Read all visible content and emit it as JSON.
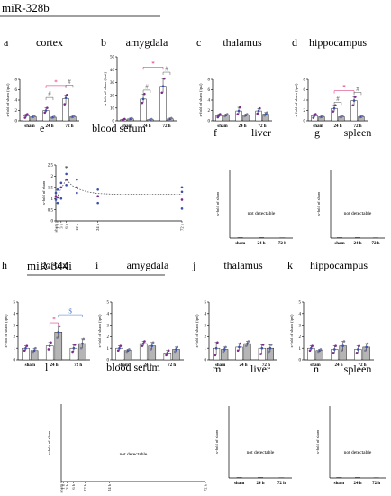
{
  "sections": [
    {
      "title": "miR-328b"
    },
    {
      "title": "miR-344i"
    }
  ],
  "colors": {
    "bar_fill": "#ffffff",
    "bar_fill_gray": "#b5b5b5",
    "point_purple": "#7d2a8c",
    "point_blue": "#3a4fb0",
    "point_gray": "#7a7a9a",
    "sig_red": "#d6186b",
    "sig_blue": "#4a74c9",
    "sig_gray": "#555555",
    "nd_green": "#2fb24a",
    "nd_red": "#d62828",
    "fit_line": "#444444",
    "serum_line": "#8b8bd6"
  },
  "chart_data": [
    {
      "type": "bar",
      "letter": "a",
      "title": "cortex",
      "section": 0,
      "ylabel": "x-fold of sham (ipsi)",
      "ylim": [
        0,
        8
      ],
      "yticks": [
        0,
        2,
        4,
        6,
        8
      ],
      "categories": [
        "sham",
        "24 h",
        "72 h"
      ],
      "series": [
        {
          "values": [
            1.0,
            2.0,
            4.3
          ],
          "points": [
            [
              0.6,
              1.0,
              1.3
            ],
            [
              1.6,
              2.0,
              2.5
            ],
            [
              3.2,
              4.4,
              5.0
            ]
          ]
        },
        {
          "values": [
            0.8,
            0.7,
            0.8
          ],
          "points": [
            [
              0.7,
              0.8,
              0.9
            ],
            [
              0.6,
              0.7,
              0.8
            ],
            [
              0.7,
              0.8,
              0.9
            ]
          ]
        }
      ],
      "annotations": [
        {
          "type": "bracket",
          "from": [
            1,
            0
          ],
          "to": [
            2,
            0
          ],
          "level": 6.8,
          "symbol": "*",
          "color": "sig_red"
        },
        {
          "type": "bracket",
          "from": [
            1,
            0
          ],
          "to": [
            1,
            1
          ],
          "level": 4.5,
          "symbol": "#",
          "color": "sig_gray"
        },
        {
          "type": "bracket",
          "from": [
            2,
            0
          ],
          "to": [
            2,
            1
          ],
          "level": 6.9,
          "symbol": "#",
          "color": "sig_gray"
        }
      ]
    },
    {
      "type": "bar",
      "letter": "b",
      "title": "amygdala",
      "section": 0,
      "ylabel": "x-fold of sham (ipsi)",
      "ylim": [
        0,
        50
      ],
      "yticks": [
        0,
        10,
        20,
        30,
        40,
        50
      ],
      "categories": [
        "sham",
        "24 h",
        "72 h"
      ],
      "series": [
        {
          "values": [
            1.0,
            17.0,
            27.0
          ],
          "points": [
            [
              0.5,
              1.0,
              1.5
            ],
            [
              14.0,
              17.0,
              21.0
            ],
            [
              22.0,
              27.0,
              33.0
            ]
          ]
        },
        {
          "values": [
            1.6,
            1.0,
            1.6
          ],
          "points": [
            [
              1.0,
              1.6,
              2.2
            ],
            [
              0.6,
              1.0,
              1.4
            ],
            [
              1.0,
              1.6,
              2.2
            ]
          ]
        }
      ],
      "annotations": [
        {
          "type": "bracket",
          "from": [
            1,
            0
          ],
          "to": [
            2,
            0
          ],
          "level": 42,
          "symbol": "*",
          "color": "sig_red"
        },
        {
          "type": "bracket",
          "from": [
            1,
            0
          ],
          "to": [
            1,
            1
          ],
          "level": 24,
          "symbol": "#",
          "color": "sig_gray"
        },
        {
          "type": "bracket",
          "from": [
            2,
            0
          ],
          "to": [
            2,
            1
          ],
          "level": 38,
          "symbol": "#",
          "color": "sig_gray"
        }
      ]
    },
    {
      "type": "bar",
      "letter": "c",
      "title": "thalamus",
      "section": 0,
      "ylabel": "x-fold of sham (ipsi)",
      "ylim": [
        0,
        8
      ],
      "yticks": [
        0,
        2,
        4,
        6,
        8
      ],
      "categories": [
        "sham",
        "24 h",
        "72 h"
      ],
      "series": [
        {
          "values": [
            1.0,
            1.9,
            1.9
          ],
          "points": [
            [
              0.7,
              1.0,
              1.3
            ],
            [
              1.3,
              1.9,
              2.6
            ],
            [
              1.4,
              1.9,
              2.4
            ]
          ]
        },
        {
          "values": [
            1.1,
            1.1,
            1.3
          ],
          "points": [
            [
              0.9,
              1.1,
              1.3
            ],
            [
              0.9,
              1.1,
              1.3
            ],
            [
              1.0,
              1.3,
              1.6
            ]
          ]
        }
      ],
      "annotations": []
    },
    {
      "type": "bar",
      "letter": "d",
      "title": "hippocampus",
      "section": 0,
      "ylabel": "x-fold of sham (ipsi)",
      "ylim": [
        0,
        8
      ],
      "yticks": [
        0,
        2,
        4,
        6,
        8
      ],
      "categories": [
        "sham",
        "24 h",
        "72 h"
      ],
      "series": [
        {
          "values": [
            1.0,
            2.4,
            3.9
          ],
          "points": [
            [
              0.6,
              1.0,
              1.3
            ],
            [
              1.8,
              2.4,
              3.0
            ],
            [
              3.0,
              3.9,
              4.6
            ]
          ]
        },
        {
          "values": [
            0.8,
            0.8,
            0.8
          ],
          "points": [
            [
              0.7,
              0.8,
              0.9
            ],
            [
              0.7,
              0.8,
              0.9
            ],
            [
              0.7,
              0.8,
              0.9
            ]
          ]
        }
      ],
      "annotations": [
        {
          "type": "bracket",
          "from": [
            1,
            0
          ],
          "to": [
            2,
            0
          ],
          "level": 5.8,
          "symbol": "*",
          "color": "sig_red"
        },
        {
          "type": "bracket",
          "from": [
            1,
            0
          ],
          "to": [
            1,
            1
          ],
          "level": 3.6,
          "symbol": "#",
          "color": "sig_gray"
        },
        {
          "type": "bracket",
          "from": [
            2,
            0
          ],
          "to": [
            2,
            1
          ],
          "level": 5.5,
          "symbol": "#",
          "color": "sig_gray"
        }
      ]
    },
    {
      "type": "scatter",
      "letter": "e",
      "title": "blood serum",
      "section": 0,
      "ylabel": "x-fold of sham",
      "ylim": [
        0,
        2.5
      ],
      "yticks": [
        0,
        0.5,
        1.0,
        1.5,
        2.0,
        2.5
      ],
      "xlim": [
        0,
        72
      ],
      "xticks": [
        {
          "v": 0,
          "t": "sham"
        },
        {
          "v": 1,
          "t": "1 h"
        },
        {
          "v": 3,
          "t": "3 h"
        },
        {
          "v": 6,
          "t": "6 h"
        },
        {
          "v": 12,
          "t": "12 h"
        },
        {
          "v": 24,
          "t": "24 h"
        },
        {
          "v": 72,
          "t": "72 h"
        }
      ],
      "points": [
        {
          "x": 0,
          "y": 0.95
        },
        {
          "x": 0,
          "y": 1.1
        },
        {
          "x": 0,
          "y": 1.25
        },
        {
          "x": 1,
          "y": 0.8
        },
        {
          "x": 1,
          "y": 1.05
        },
        {
          "x": 1,
          "y": 1.4
        },
        {
          "x": 3,
          "y": 1.0
        },
        {
          "x": 3,
          "y": 1.5
        },
        {
          "x": 3,
          "y": 1.7
        },
        {
          "x": 6,
          "y": 1.6
        },
        {
          "x": 6,
          "y": 1.85
        },
        {
          "x": 6,
          "y": 2.1
        },
        {
          "x": 12,
          "y": 1.25
        },
        {
          "x": 12,
          "y": 1.5
        },
        {
          "x": 12,
          "y": 1.85
        },
        {
          "x": 24,
          "y": 0.8
        },
        {
          "x": 24,
          "y": 1.1
        },
        {
          "x": 24,
          "y": 1.4
        },
        {
          "x": 72,
          "y": 0.55
        },
        {
          "x": 72,
          "y": 0.95
        },
        {
          "x": 72,
          "y": 1.3
        },
        {
          "x": 72,
          "y": 1.5
        }
      ],
      "fit": [
        [
          0,
          1.05
        ],
        [
          1,
          1.1
        ],
        [
          3,
          1.45
        ],
        [
          6,
          1.85
        ],
        [
          9,
          1.6
        ],
        [
          12,
          1.45
        ],
        [
          18,
          1.3
        ],
        [
          24,
          1.22
        ],
        [
          36,
          1.18
        ],
        [
          72,
          1.18
        ]
      ],
      "annotations": [
        {
          "x": 6,
          "y": 2.25,
          "symbol": "*"
        }
      ]
    },
    {
      "type": "bar",
      "letter": "f",
      "title": "liver",
      "section": 0,
      "ylabel": "x-fold of sham",
      "categories": [
        "sham",
        "24 h",
        "72 h"
      ],
      "note": "not detectable"
    },
    {
      "type": "bar",
      "letter": "g",
      "title": "spleen",
      "section": 0,
      "ylabel": "x-fold of sham",
      "categories": [
        "sham",
        "24 h",
        "72 h"
      ],
      "note": "not detectable"
    },
    {
      "type": "bar",
      "letter": "h",
      "title": "cortex",
      "section": 1,
      "ylabel": "x-fold of sham (ipsi)",
      "ylim": [
        0,
        5
      ],
      "yticks": [
        0,
        1,
        2,
        3,
        4,
        5
      ],
      "categories": [
        "sham",
        "24 h",
        "72 h"
      ],
      "series": [
        {
          "values": [
            1.0,
            1.2,
            1.0
          ],
          "points": [
            [
              0.8,
              1.0,
              1.2
            ],
            [
              0.9,
              1.2,
              1.5
            ],
            [
              0.7,
              1.0,
              1.3
            ]
          ]
        },
        {
          "values": [
            0.8,
            2.4,
            1.4
          ],
          "points": [
            [
              0.7,
              0.8,
              1.0
            ],
            [
              1.9,
              2.4,
              2.9
            ],
            [
              1.0,
              1.4,
              1.8
            ]
          ]
        }
      ],
      "annotations": [
        {
          "type": "bracket",
          "from": [
            1,
            0
          ],
          "to": [
            1,
            1
          ],
          "level": 3.2,
          "symbol": "*",
          "color": "sig_red"
        },
        {
          "type": "bracket",
          "from": [
            1,
            1
          ],
          "to": [
            2,
            1
          ],
          "level": 3.9,
          "symbol": "$",
          "color": "sig_blue"
        }
      ]
    },
    {
      "type": "bar",
      "letter": "i",
      "title": "amygdala",
      "section": 1,
      "ylabel": "x-fold of sham (ipsi)",
      "ylim": [
        0,
        5
      ],
      "yticks": [
        0,
        1,
        2,
        3,
        4,
        5
      ],
      "categories": [
        "sham",
        "24 h",
        "72 h"
      ],
      "series": [
        {
          "values": [
            1.0,
            1.4,
            0.6
          ],
          "points": [
            [
              0.8,
              1.0,
              1.2
            ],
            [
              1.2,
              1.4,
              1.6
            ],
            [
              0.4,
              0.6,
              0.8
            ]
          ]
        },
        {
          "values": [
            0.8,
            1.2,
            0.9
          ],
          "points": [
            [
              0.7,
              0.8,
              0.9
            ],
            [
              0.9,
              1.2,
              1.5
            ],
            [
              0.7,
              0.9,
              1.1
            ]
          ]
        }
      ],
      "annotations": []
    },
    {
      "type": "bar",
      "letter": "j",
      "title": "thalamus",
      "section": 1,
      "ylabel": "x-fold of sham (ipsi)",
      "ylim": [
        0,
        5
      ],
      "yticks": [
        0,
        1,
        2,
        3,
        4,
        5
      ],
      "categories": [
        "sham",
        "24 h",
        "72 h"
      ],
      "series": [
        {
          "values": [
            1.0,
            1.1,
            1.0
          ],
          "points": [
            [
              0.4,
              1.0,
              1.5
            ],
            [
              0.8,
              1.1,
              1.4
            ],
            [
              0.5,
              1.0,
              1.3
            ]
          ]
        },
        {
          "values": [
            0.9,
            1.4,
            1.0
          ],
          "points": [
            [
              0.7,
              0.9,
              1.1
            ],
            [
              1.2,
              1.4,
              1.6
            ],
            [
              0.7,
              1.0,
              1.3
            ]
          ]
        }
      ],
      "annotations": []
    },
    {
      "type": "bar",
      "letter": "k",
      "title": "hippocampus",
      "section": 1,
      "ylabel": "x-fold of sham (ipsi)",
      "ylim": [
        0,
        5
      ],
      "yticks": [
        0,
        1,
        2,
        3,
        4,
        5
      ],
      "categories": [
        "sham",
        "24 h",
        "72 h"
      ],
      "series": [
        {
          "values": [
            1.0,
            0.9,
            0.9
          ],
          "points": [
            [
              0.8,
              1.0,
              1.2
            ],
            [
              0.6,
              0.9,
              1.2
            ],
            [
              0.6,
              0.9,
              1.2
            ]
          ]
        },
        {
          "values": [
            0.8,
            1.2,
            1.1
          ],
          "points": [
            [
              0.7,
              0.8,
              0.9
            ],
            [
              0.8,
              1.2,
              1.6
            ],
            [
              0.8,
              1.1,
              1.4
            ]
          ]
        }
      ],
      "annotations": []
    },
    {
      "type": "scatter",
      "letter": "l",
      "title": "blood serum",
      "section": 1,
      "ylabel": "x-fold of sham",
      "xticks": [
        {
          "v": 0,
          "t": "sham"
        },
        {
          "v": 1,
          "t": "1 h"
        },
        {
          "v": 3,
          "t": "3 h"
        },
        {
          "v": 6,
          "t": "6 h"
        },
        {
          "v": 12,
          "t": "12 h"
        },
        {
          "v": 24,
          "t": "24 h"
        },
        {
          "v": 72,
          "t": "72 h"
        }
      ],
      "xlim": [
        0,
        72
      ],
      "note": "not detectable"
    },
    {
      "type": "bar",
      "letter": "m",
      "title": "liver",
      "section": 1,
      "ylabel": "x-fold of sham",
      "categories": [
        "sham",
        "24 h",
        "72 h"
      ],
      "note": "not detectable"
    },
    {
      "type": "bar",
      "letter": "n",
      "title": "spleen",
      "section": 1,
      "ylabel": "x-fold of sham",
      "categories": [
        "sham",
        "24 h",
        "72 h"
      ],
      "note": "not detectable"
    }
  ]
}
